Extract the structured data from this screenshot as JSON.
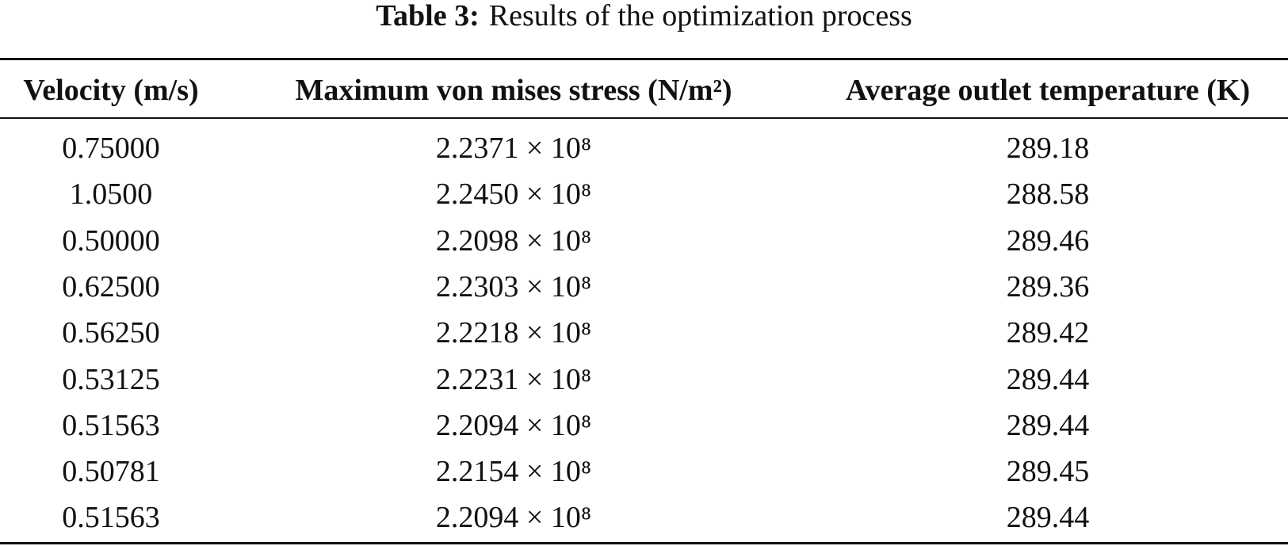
{
  "caption": {
    "label": "Table 3:",
    "text": "Results of the optimization process"
  },
  "table": {
    "header": [
      "Velocity (m/s)",
      "Maximum von mises stress (N/m²)",
      "Average outlet temperature (K)"
    ],
    "rows": [
      [
        "0.75000",
        "2.2371 × 10⁸",
        "289.18"
      ],
      [
        "1.0500",
        "2.2450 × 10⁸",
        "288.58"
      ],
      [
        "0.50000",
        "2.2098 × 10⁸",
        "289.46"
      ],
      [
        "0.62500",
        "2.2303 × 10⁸",
        "289.36"
      ],
      [
        "0.56250",
        "2.2218 × 10⁸",
        "289.42"
      ],
      [
        "0.53125",
        "2.2231 × 10⁸",
        "289.44"
      ],
      [
        "0.51563",
        "2.2094 × 10⁸",
        "289.44"
      ],
      [
        "0.50781",
        "2.2154 × 10⁸",
        "289.45"
      ],
      [
        "0.51563",
        "2.2094 × 10⁸",
        "289.44"
      ]
    ]
  }
}
